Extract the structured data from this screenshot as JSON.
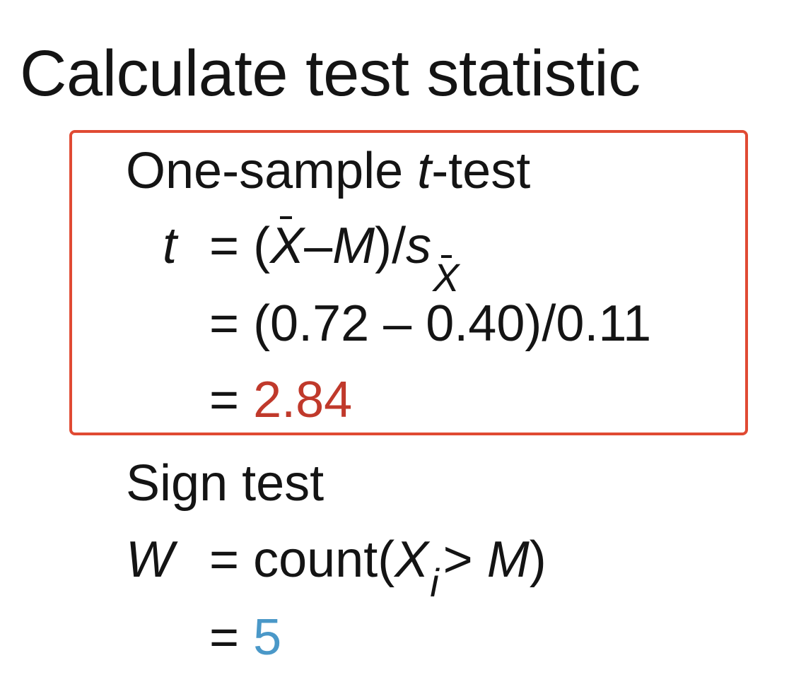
{
  "title": "Calculate test statistic",
  "ttest": {
    "heading_prefix": "One-sample ",
    "heading_italic": "t",
    "heading_suffix": "-test",
    "variable": "t",
    "eq_sign": "=",
    "open_paren": "(",
    "xbar": "X",
    "minus": "–",
    "mu": "M",
    "close_slash": ")/",
    "s": "s",
    "sub_x": "X",
    "line2": "(0.72 – 0.40)/0.11",
    "result": "2.84",
    "result_color": "#c0392b",
    "box_color": "#e04a33"
  },
  "sign": {
    "heading": "Sign test",
    "variable": "W",
    "eq_sign": "=",
    "count_open": "count(",
    "xi": "X",
    "sub_i": "i",
    "gt": "> ",
    "mu": "M",
    "close": ")",
    "result": "5",
    "result_color": "#4a98c8"
  }
}
